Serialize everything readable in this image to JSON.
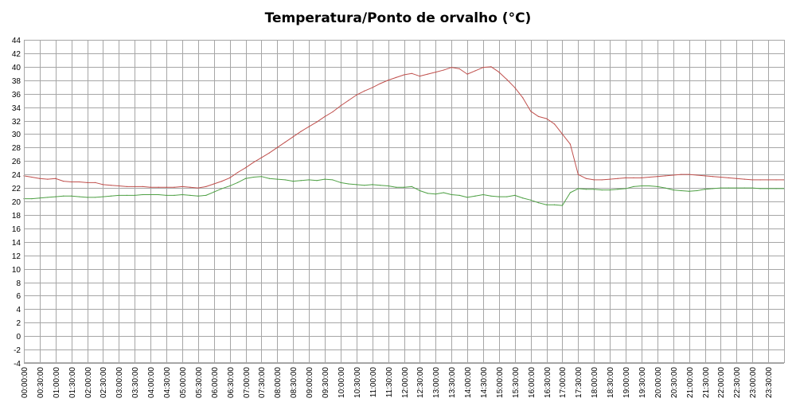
{
  "chart_data": {
    "type": "line",
    "title": "Temperatura/Ponto de orvalho (°C)",
    "xlabel": "",
    "ylabel": "",
    "ylim": [
      -4,
      44
    ],
    "ytick_step": 2,
    "yticks": [
      "44",
      "42",
      "40",
      "38",
      "36",
      "34",
      "32",
      "30",
      "28",
      "26",
      "24",
      "22",
      "20",
      "18",
      "16",
      "14",
      "12",
      "10",
      "8",
      "6",
      "4",
      "2",
      "0",
      "-2",
      "-4"
    ],
    "x_tick_labels": [
      "00:00:00",
      "00:30:00",
      "01:00:00",
      "01:30:00",
      "02:00:00",
      "02:30:00",
      "03:00:00",
      "03:30:00",
      "04:00:00",
      "04:30:00",
      "05:00:00",
      "05:30:00",
      "06:00:00",
      "06:30:00",
      "07:00:00",
      "07:30:00",
      "08:00:00",
      "08:30:00",
      "09:00:00",
      "09:30:00",
      "10:00:00",
      "10:30:00",
      "11:00:00",
      "11:30:00",
      "12:00:00",
      "12:30:00",
      "13:00:00",
      "13:30:00",
      "14:00:00",
      "14:30:00",
      "15:00:00",
      "15:30:00",
      "16:00:00",
      "16:30:00",
      "17:00:00",
      "17:30:00",
      "18:00:00",
      "18:30:00",
      "19:00:00",
      "19:30:00",
      "20:00:00",
      "20:30:00",
      "21:00:00",
      "21:30:00",
      "22:00:00",
      "22:30:00",
      "23:00:00",
      "23:30:00"
    ],
    "x": [
      "00:00",
      "00:15",
      "00:30",
      "00:45",
      "01:00",
      "01:15",
      "01:30",
      "01:45",
      "02:00",
      "02:15",
      "02:30",
      "02:45",
      "03:00",
      "03:15",
      "03:30",
      "03:45",
      "04:00",
      "04:15",
      "04:30",
      "04:45",
      "05:00",
      "05:15",
      "05:30",
      "05:45",
      "06:00",
      "06:15",
      "06:30",
      "06:45",
      "07:00",
      "07:15",
      "07:30",
      "07:45",
      "08:00",
      "08:15",
      "08:30",
      "08:45",
      "09:00",
      "09:15",
      "09:30",
      "09:45",
      "10:00",
      "10:15",
      "10:30",
      "10:45",
      "11:00",
      "11:15",
      "11:30",
      "11:45",
      "12:00",
      "12:15",
      "12:30",
      "12:45",
      "13:00",
      "13:15",
      "13:30",
      "13:45",
      "14:00",
      "14:15",
      "14:30",
      "14:45",
      "15:00",
      "15:15",
      "15:30",
      "15:45",
      "16:00",
      "16:15",
      "16:30",
      "16:45",
      "17:00",
      "17:15",
      "17:30",
      "17:45",
      "18:00",
      "18:15",
      "18:30",
      "18:45",
      "19:00",
      "19:15",
      "19:30",
      "19:45",
      "20:00",
      "20:15",
      "20:30",
      "20:45",
      "21:00",
      "21:15",
      "21:30",
      "21:45",
      "22:00",
      "22:15",
      "22:30",
      "22:45",
      "23:00",
      "23:15",
      "23:30",
      "23:45",
      "24:00"
    ],
    "grid": true,
    "series": [
      {
        "color": "#c0504d",
        "values": [
          23.8,
          23.6,
          23.4,
          23.3,
          23.4,
          23.0,
          22.9,
          22.9,
          22.8,
          22.8,
          22.5,
          22.4,
          22.3,
          22.2,
          22.2,
          22.2,
          22.1,
          22.1,
          22.1,
          22.1,
          22.2,
          22.1,
          22.0,
          22.2,
          22.6,
          23.0,
          23.5,
          24.3,
          25.0,
          25.8,
          26.5,
          27.2,
          28.0,
          28.8,
          29.6,
          30.4,
          31.1,
          31.8,
          32.6,
          33.3,
          34.2,
          35.0,
          35.8,
          36.4,
          36.9,
          37.5,
          38.0,
          38.4,
          38.8,
          39.0,
          38.6,
          38.9,
          39.2,
          39.5,
          39.9,
          39.7,
          38.9,
          39.4,
          39.9,
          40.0,
          39.2,
          38.1,
          36.9,
          35.4,
          33.4,
          32.6,
          32.3,
          31.5,
          30.0,
          28.5,
          24.0,
          23.4,
          23.2,
          23.2,
          23.3,
          23.4,
          23.5,
          23.5,
          23.5,
          23.6,
          23.7,
          23.8,
          23.9,
          24.0,
          24.0,
          23.9,
          23.8,
          23.7,
          23.6,
          23.5,
          23.4,
          23.3,
          23.2,
          23.2,
          23.2,
          23.2,
          23.2
        ]
      },
      {
        "color": "#4ea044",
        "values": [
          20.4,
          20.4,
          20.5,
          20.6,
          20.7,
          20.8,
          20.8,
          20.7,
          20.6,
          20.6,
          20.7,
          20.8,
          20.9,
          20.9,
          20.9,
          21.0,
          21.0,
          21.0,
          20.9,
          20.9,
          21.0,
          20.9,
          20.8,
          20.9,
          21.4,
          21.9,
          22.3,
          22.8,
          23.4,
          23.6,
          23.7,
          23.4,
          23.3,
          23.2,
          23.0,
          23.1,
          23.2,
          23.1,
          23.3,
          23.2,
          22.8,
          22.6,
          22.5,
          22.4,
          22.5,
          22.4,
          22.3,
          22.1,
          22.1,
          22.2,
          21.6,
          21.2,
          21.1,
          21.3,
          21.0,
          20.9,
          20.6,
          20.8,
          21.0,
          20.8,
          20.7,
          20.7,
          20.9,
          20.5,
          20.2,
          19.8,
          19.5,
          19.5,
          19.4,
          21.3,
          21.9,
          21.8,
          21.8,
          21.7,
          21.7,
          21.8,
          21.9,
          22.2,
          22.3,
          22.3,
          22.2,
          22.0,
          21.7,
          21.6,
          21.5,
          21.6,
          21.8,
          21.9,
          22.0,
          22.0,
          22.0,
          22.0,
          22.0,
          21.9,
          21.9,
          21.9,
          21.9
        ]
      }
    ]
  }
}
